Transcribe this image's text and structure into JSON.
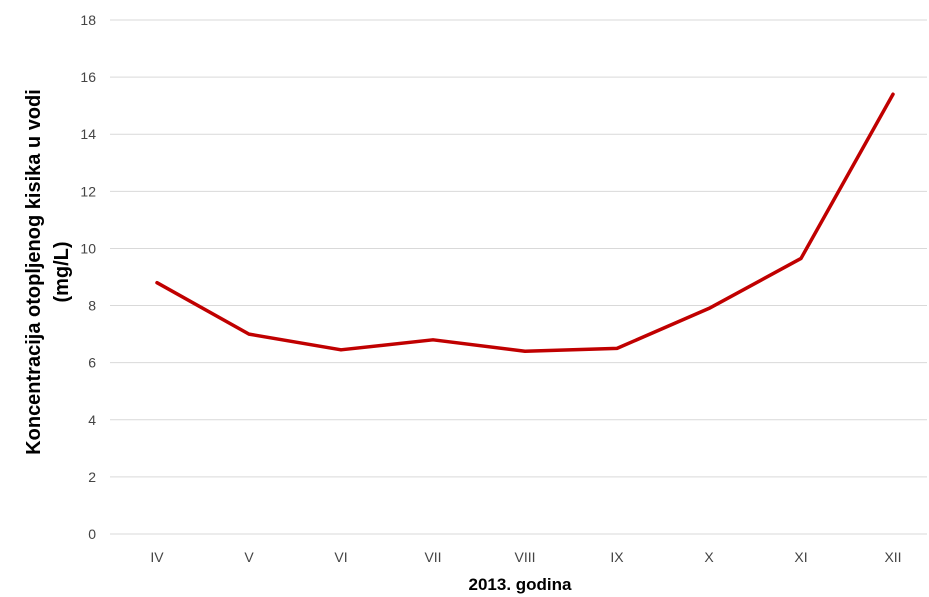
{
  "chart_data": {
    "type": "line",
    "categories": [
      "IV",
      "V",
      "VI",
      "VII",
      "VIII",
      "IX",
      "X",
      "XI",
      "XII"
    ],
    "series": [
      {
        "values": [
          8.8,
          7.0,
          6.45,
          6.8,
          6.4,
          6.5,
          7.9,
          9.65,
          15.4
        ],
        "color": "#c00000"
      }
    ],
    "xlabel": "2013. godina",
    "ylabel_lines": [
      "Koncentracija otopljenog kisika u vodi",
      "(mg/L)"
    ],
    "ylim": [
      0,
      18
    ],
    "yticks": [
      0,
      2,
      4,
      6,
      8,
      10,
      12,
      14,
      16,
      18
    ],
    "grid": true
  }
}
